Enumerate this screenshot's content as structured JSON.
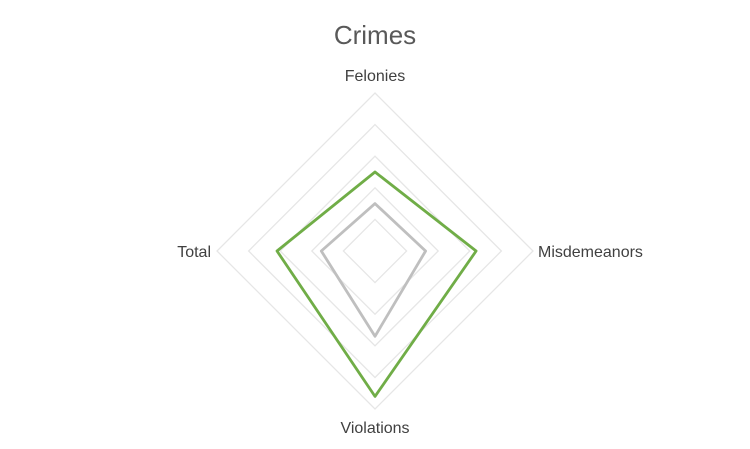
{
  "chart_data": {
    "type": "radar",
    "title": "Crimes",
    "categories": [
      "Felonies",
      "Misdemeanors",
      "Violations",
      "Total"
    ],
    "rlim": [
      0,
      5
    ],
    "grid_levels": [
      1,
      2,
      3,
      4,
      5
    ],
    "grid": true,
    "legend": "none",
    "series": [
      {
        "values": [
          2.5,
          3.2,
          4.6,
          3.1
        ],
        "color": "#70ad47"
      },
      {
        "values": [
          1.5,
          1.6,
          2.7,
          1.7
        ],
        "color": "#bfbfbf"
      }
    ],
    "grid_color": "#e6e6e6"
  }
}
